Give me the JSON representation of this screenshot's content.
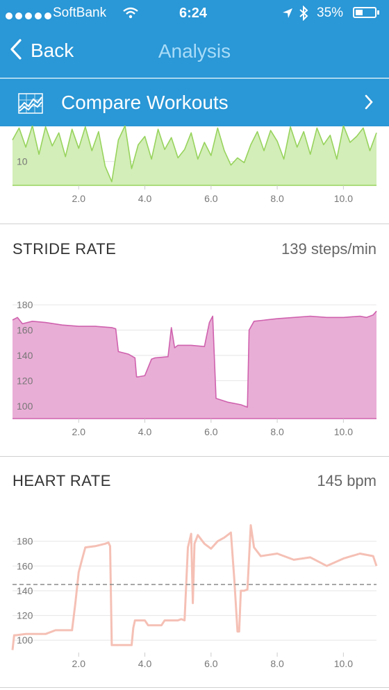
{
  "status_bar": {
    "carrier": "SoftBank",
    "time": "6:24",
    "battery": "35%"
  },
  "nav": {
    "back_label": "Back",
    "title": "Analysis"
  },
  "compare": {
    "label": "Compare Workouts"
  },
  "colors": {
    "header": "#2a97d6",
    "pace_line": "#97d35d",
    "pace_fill": "#d3eeb8",
    "stride_line": "#cf62ae",
    "stride_fill": "#e9aed6",
    "hr_line": "#f5c0b5"
  },
  "sections": {
    "stride": {
      "title": "STRIDE RATE",
      "value": "139 steps/min"
    },
    "heart": {
      "title": "HEART RATE",
      "value": "145 bpm"
    }
  },
  "chart_data": [
    {
      "id": "pace",
      "type": "area",
      "x_ticks": [
        "2.0",
        "4.0",
        "6.0",
        "8.0",
        "10.0"
      ],
      "y_ticks": [
        "10"
      ],
      "x": [
        0,
        0.2,
        0.4,
        0.6,
        0.8,
        1.0,
        1.2,
        1.4,
        1.6,
        1.8,
        2.0,
        2.2,
        2.4,
        2.6,
        2.8,
        3.0,
        3.2,
        3.4,
        3.6,
        3.8,
        4.0,
        4.2,
        4.4,
        4.6,
        4.8,
        5.0,
        5.2,
        5.4,
        5.6,
        5.8,
        6.0,
        6.2,
        6.4,
        6.6,
        6.8,
        7.0,
        7.2,
        7.4,
        7.6,
        7.8,
        8.0,
        8.2,
        8.4,
        8.6,
        8.8,
        9.0,
        9.2,
        9.4,
        9.6,
        9.8,
        10.0,
        10.2,
        10.4,
        10.6,
        10.8,
        11.0
      ],
      "values": [
        11.8,
        12.8,
        11.2,
        13.0,
        10.6,
        12.9,
        11.3,
        12.4,
        10.4,
        12.7,
        11.1,
        12.9,
        10.9,
        12.5,
        9.6,
        8.3,
        11.8,
        13.0,
        9.4,
        11.4,
        12.1,
        10.2,
        12.7,
        11.0,
        12.0,
        10.3,
        11.0,
        12.4,
        10.2,
        11.6,
        10.5,
        12.8,
        10.9,
        9.7,
        10.3,
        9.9,
        11.4,
        12.5,
        10.9,
        12.6,
        11.7,
        10.2,
        12.9,
        11.2,
        12.5,
        10.6,
        12.8,
        11.4,
        12.2,
        10.2,
        13.0,
        11.6,
        12.1,
        12.8,
        10.9,
        12.4
      ],
      "ylim": [
        8.0,
        13.0
      ],
      "xlim": [
        0,
        11
      ]
    },
    {
      "id": "stride",
      "type": "area",
      "x_ticks": [
        "2.0",
        "4.0",
        "6.0",
        "8.0",
        "10.0"
      ],
      "y_ticks": [
        "180",
        "160",
        "140",
        "120",
        "100"
      ],
      "x": [
        0,
        0.15,
        0.3,
        0.6,
        1.0,
        1.5,
        2.0,
        2.5,
        3.0,
        3.12,
        3.2,
        3.5,
        3.7,
        3.75,
        3.8,
        4.0,
        4.2,
        4.3,
        4.7,
        4.8,
        4.9,
        5.0,
        5.4,
        5.8,
        5.95,
        6.05,
        6.15,
        6.5,
        6.9,
        7.1,
        7.15,
        7.3,
        8.0,
        8.5,
        9.0,
        9.5,
        10.0,
        10.5,
        10.7,
        10.9,
        11.0
      ],
      "values": [
        168,
        170,
        165,
        167,
        166,
        164,
        163,
        163,
        162,
        161,
        143,
        141,
        138,
        123,
        123,
        124,
        137,
        138,
        139,
        162,
        146,
        148,
        148,
        147,
        166,
        171,
        106,
        103,
        101,
        99,
        160,
        167,
        169,
        170,
        171,
        170,
        170,
        171,
        170,
        172,
        175
      ],
      "ylim": [
        90,
        185
      ],
      "xlim": [
        0,
        11
      ]
    },
    {
      "id": "heart",
      "type": "line",
      "x_ticks": [
        "2.0",
        "4.0",
        "6.0",
        "8.0",
        "10.0"
      ],
      "y_ticks": [
        "180",
        "160",
        "140",
        "120",
        "100"
      ],
      "reference_line": 145,
      "x": [
        0,
        0.05,
        0.1,
        0.4,
        1.0,
        1.3,
        1.8,
        1.9,
        2.0,
        2.1,
        2.2,
        2.5,
        2.8,
        2.9,
        2.95,
        3.0,
        3.5,
        3.6,
        3.65,
        3.7,
        4.0,
        4.1,
        4.5,
        4.6,
        5.0,
        5.1,
        5.2,
        5.3,
        5.4,
        5.45,
        5.5,
        5.6,
        5.8,
        6.0,
        6.2,
        6.4,
        6.6,
        6.7,
        6.8,
        6.85,
        6.9,
        7.0,
        7.1,
        7.2,
        7.3,
        7.5,
        8.0,
        8.5,
        9.0,
        9.5,
        10.0,
        10.5,
        10.9,
        11.0
      ],
      "values": [
        92,
        104,
        104,
        105,
        105,
        108,
        108,
        130,
        155,
        165,
        175,
        176,
        178,
        179,
        176,
        96,
        96,
        96,
        110,
        116,
        116,
        112,
        112,
        116,
        116,
        117,
        116,
        175,
        186,
        130,
        178,
        185,
        178,
        174,
        180,
        183,
        187,
        150,
        107,
        107,
        140,
        140,
        141,
        193,
        175,
        168,
        170,
        165,
        167,
        160,
        166,
        170,
        168,
        160
      ],
      "ylim": [
        90,
        195
      ],
      "xlim": [
        0,
        11
      ]
    }
  ]
}
